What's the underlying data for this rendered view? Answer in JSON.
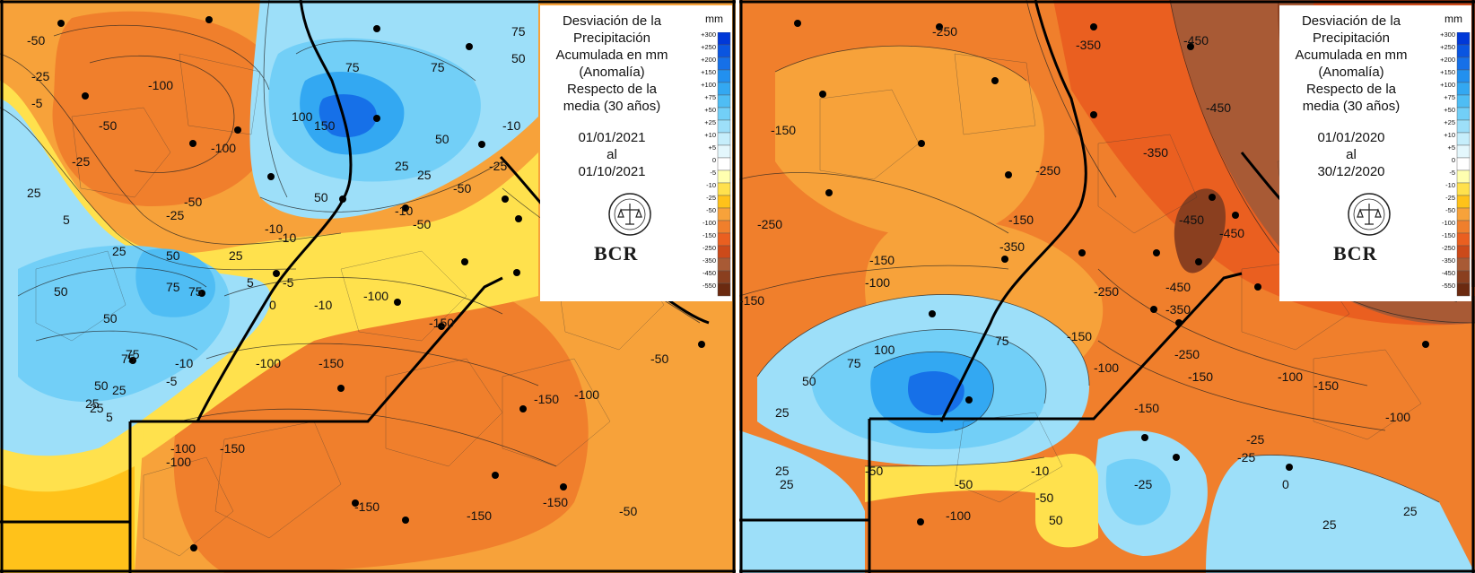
{
  "panels": [
    {
      "id": "left",
      "title_lines": [
        "Desviación de la",
        "Precipitación",
        "Acumulada en mm",
        "(Anomalía)",
        "Respecto de la",
        "media  (30 años)"
      ],
      "date_lines": [
        "01/01/2021",
        "al",
        "01/10/2021"
      ],
      "unit": "mm",
      "logo_text": "BCR",
      "contour_labels": [
        "-50",
        "-25",
        "-100",
        "-100",
        "-50",
        "75",
        "50",
        "75",
        "-10",
        "-5",
        "-50",
        "50",
        "100",
        "150",
        "75",
        "25",
        "50",
        "-25",
        "-25",
        "25",
        "5",
        "-50",
        "25",
        "25",
        "0",
        "50",
        "75",
        "-10",
        "-10",
        "5",
        "75",
        "50",
        "75",
        "25",
        "-100",
        "-150",
        "-150",
        "-100",
        "-50",
        "-150",
        "-100",
        "-150",
        "-150",
        "-100",
        "-50",
        "25",
        "50",
        "75",
        "-5",
        "-10",
        "5",
        "-150",
        "-100",
        "-150",
        "-25",
        "-50",
        "-10",
        "50",
        "25",
        "25",
        "-10",
        "-5"
      ]
    },
    {
      "id": "right",
      "title_lines": [
        "Desviación de la",
        "Precipitación",
        "Acumulada en mm",
        "(Anomalía)",
        "Respecto de la",
        "media  (30 años)"
      ],
      "date_lines": [
        "01/01/2020",
        "al",
        "30/12/2020"
      ],
      "unit": "mm",
      "logo_text": "BCR",
      "contour_labels": [
        "-250",
        "-250",
        "-350",
        "-450",
        "-450",
        "-150",
        "-250",
        "-150",
        "-350",
        "-350",
        "-450",
        "-450",
        "-450",
        "-250",
        "-150",
        "-150",
        "-100",
        "-100",
        "-150",
        "-150",
        "-350",
        "-250",
        "-150",
        "-100",
        "-100",
        "100",
        "75",
        "50",
        "25",
        "25",
        "-50",
        "-100",
        "-50",
        "-150",
        "-25",
        "-25",
        "25",
        "0",
        "-10",
        "-50",
        "75",
        "25",
        "-25",
        "25",
        "50"
      ]
    }
  ],
  "legend_levels": [
    "+300",
    "+250",
    "+200",
    "+150",
    "+100",
    "+75",
    "+50",
    "+25",
    "+10",
    "+5",
    "0",
    "-5",
    "-10",
    "-25",
    "-50",
    "-100",
    "-150",
    "-250",
    "-350",
    "-450",
    "-550"
  ],
  "legend_colors": [
    "#0038d8",
    "#0a55e0",
    "#1670e8",
    "#2290ef",
    "#33a8f2",
    "#4fbdf4",
    "#72cff7",
    "#9ddff9",
    "#c6eefb",
    "#e4f7fc",
    "#ffffff",
    "#ffffb0",
    "#ffe14d",
    "#ffc21a",
    "#f7a23a",
    "#f07f2c",
    "#ea5f20",
    "#cc4a1a",
    "#a85a35",
    "#8a3f1f",
    "#6b2a10"
  ]
}
